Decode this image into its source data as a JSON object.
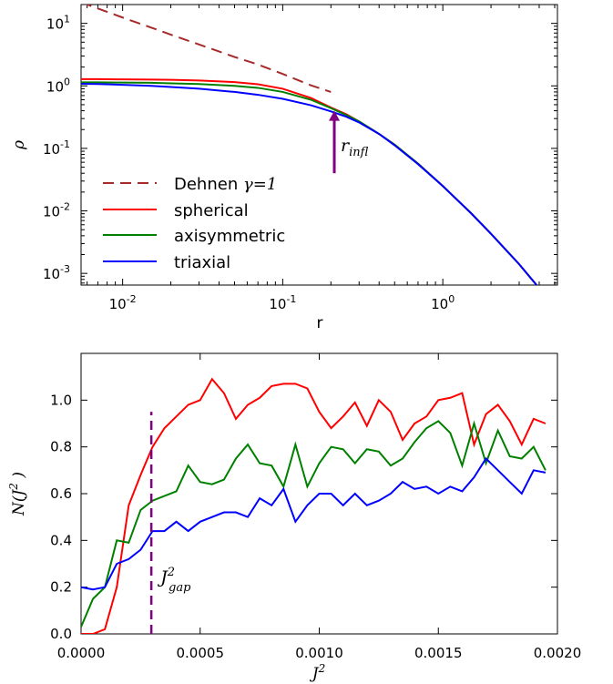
{
  "chart_data": [
    {
      "type": "line",
      "xscale": "log",
      "yscale": "log",
      "xlabel": "r",
      "ylabel": "ρ",
      "xlim": [
        0.0055,
        5.2
      ],
      "ylim": [
        0.00065,
        20
      ],
      "xticks": [
        {
          "value": 0.01,
          "mantissa": "10",
          "exp": "-2"
        },
        {
          "value": 0.1,
          "mantissa": "10",
          "exp": "-1"
        },
        {
          "value": 1,
          "mantissa": "10",
          "exp": "0"
        }
      ],
      "yticks": [
        {
          "value": 0.001,
          "mantissa": "10",
          "exp": "-3"
        },
        {
          "value": 0.01,
          "mantissa": "10",
          "exp": "-2"
        },
        {
          "value": 0.1,
          "mantissa": "10",
          "exp": "-1"
        },
        {
          "value": 1,
          "mantissa": "10",
          "exp": "0"
        },
        {
          "value": 10,
          "mantissa": "10",
          "exp": "1"
        }
      ],
      "legend_position": "lower-left",
      "series": [
        {
          "name_text": "Dehnen ",
          "name_math": "γ=1",
          "color": "#a52a2a",
          "dashed": true,
          "x": [
            0.0055,
            0.007,
            0.01,
            0.015,
            0.02,
            0.03,
            0.05,
            0.07,
            0.1,
            0.15,
            0.2
          ],
          "y": [
            21.8,
            17.3,
            12.4,
            8.6,
            6.6,
            4.6,
            2.9,
            2.2,
            1.55,
            1.02,
            0.8
          ]
        },
        {
          "name": "spherical",
          "color": "#ff0000",
          "dashed": false,
          "x": [
            0.0055,
            0.007,
            0.01,
            0.015,
            0.02,
            0.03,
            0.05,
            0.07,
            0.1,
            0.15,
            0.2,
            0.25,
            0.3,
            0.4,
            0.5,
            0.7,
            1.0,
            1.5,
            2.0,
            3.0,
            4.0,
            5.0
          ],
          "y": [
            1.28,
            1.28,
            1.27,
            1.26,
            1.25,
            1.22,
            1.15,
            1.06,
            0.9,
            0.64,
            0.45,
            0.35,
            0.27,
            0.17,
            0.115,
            0.057,
            0.025,
            0.0092,
            0.0043,
            0.0014,
            0.00058,
            0.00028
          ]
        },
        {
          "name": "axisymmetric",
          "color": "#008000",
          "dashed": false,
          "x": [
            0.0055,
            0.007,
            0.01,
            0.015,
            0.02,
            0.03,
            0.05,
            0.07,
            0.1,
            0.15,
            0.2,
            0.25,
            0.3,
            0.4,
            0.5,
            0.7,
            1.0,
            1.5,
            2.0,
            3.0,
            4.0,
            5.0
          ],
          "y": [
            1.14,
            1.14,
            1.13,
            1.12,
            1.1,
            1.07,
            1.0,
            0.93,
            0.8,
            0.6,
            0.44,
            0.34,
            0.27,
            0.17,
            0.115,
            0.057,
            0.025,
            0.0092,
            0.0043,
            0.0014,
            0.00058,
            0.00028
          ]
        },
        {
          "name": "triaxial",
          "color": "#0000ff",
          "dashed": false,
          "x": [
            0.0055,
            0.007,
            0.01,
            0.015,
            0.02,
            0.03,
            0.05,
            0.07,
            0.1,
            0.15,
            0.2,
            0.25,
            0.3,
            0.4,
            0.5,
            0.7,
            1.0,
            1.5,
            2.0,
            3.0,
            4.0,
            5.0
          ],
          "y": [
            1.08,
            1.07,
            1.04,
            1.0,
            0.96,
            0.9,
            0.8,
            0.72,
            0.62,
            0.49,
            0.39,
            0.32,
            0.26,
            0.17,
            0.112,
            0.056,
            0.025,
            0.0092,
            0.0043,
            0.0014,
            0.00058,
            0.00028
          ]
        }
      ],
      "annotation": {
        "label": "r",
        "subscript": "infl",
        "x": 0.21,
        "y_tail": 0.04,
        "y_head": 0.4,
        "color": "#800080"
      }
    },
    {
      "type": "line",
      "xlabel": "J",
      "xlabel_sup": "2",
      "ylabel": "N(J",
      "ylabel_sup": "2",
      "ylabel_end": " )",
      "xlim": [
        0,
        0.002
      ],
      "ylim": [
        0,
        1.2
      ],
      "xticks": [
        "0.0000",
        "0.0005",
        "0.0010",
        "0.0015",
        "0.0020"
      ],
      "xtick_values": [
        0,
        0.0005,
        0.001,
        0.0015,
        0.002
      ],
      "yticks": [
        "0.0",
        "0.2",
        "0.4",
        "0.6",
        "0.8",
        "1.0"
      ],
      "ytick_values": [
        0,
        0.2,
        0.4,
        0.6,
        0.8,
        1.0
      ],
      "series": [
        {
          "name": "spherical",
          "color": "#ff0000",
          "x": [
            0,
            5e-05,
            0.0001,
            0.00015,
            0.0002,
            0.00025,
            0.0003,
            0.00035,
            0.0004,
            0.00045,
            0.0005,
            0.00055,
            0.0006,
            0.00065,
            0.0007,
            0.00075,
            0.0008,
            0.00085,
            0.0009,
            0.00095,
            0.001,
            0.00105,
            0.0011,
            0.00115,
            0.0012,
            0.00125,
            0.0013,
            0.00135,
            0.0014,
            0.00145,
            0.0015,
            0.00155,
            0.0016,
            0.00165,
            0.0017,
            0.00175,
            0.0018,
            0.00185,
            0.0019,
            0.00195
          ],
          "y": [
            0.0,
            0.0,
            0.02,
            0.2,
            0.55,
            0.68,
            0.8,
            0.88,
            0.93,
            0.98,
            1.0,
            1.09,
            1.03,
            0.92,
            0.98,
            1.01,
            1.06,
            1.07,
            1.07,
            1.05,
            0.95,
            0.88,
            0.93,
            0.99,
            0.89,
            1.0,
            0.95,
            0.83,
            0.9,
            0.93,
            1.0,
            1.01,
            1.03,
            0.81,
            0.94,
            0.98,
            0.91,
            0.81,
            0.92,
            0.9
          ]
        },
        {
          "name": "axisymmetric",
          "color": "#008000",
          "x": [
            0,
            5e-05,
            0.0001,
            0.00015,
            0.0002,
            0.00025,
            0.0003,
            0.00035,
            0.0004,
            0.00045,
            0.0005,
            0.00055,
            0.0006,
            0.00065,
            0.0007,
            0.00075,
            0.0008,
            0.00085,
            0.0009,
            0.00095,
            0.001,
            0.00105,
            0.0011,
            0.00115,
            0.0012,
            0.00125,
            0.0013,
            0.00135,
            0.0014,
            0.00145,
            0.0015,
            0.00155,
            0.0016,
            0.00165,
            0.0017,
            0.00175,
            0.0018,
            0.00185,
            0.0019,
            0.00195
          ],
          "y": [
            0.03,
            0.15,
            0.2,
            0.4,
            0.39,
            0.53,
            0.57,
            0.59,
            0.61,
            0.72,
            0.65,
            0.64,
            0.66,
            0.75,
            0.81,
            0.73,
            0.72,
            0.63,
            0.81,
            0.63,
            0.73,
            0.8,
            0.79,
            0.73,
            0.79,
            0.78,
            0.72,
            0.75,
            0.82,
            0.88,
            0.91,
            0.86,
            0.72,
            0.9,
            0.73,
            0.87,
            0.76,
            0.75,
            0.8,
            0.7
          ]
        },
        {
          "name": "triaxial",
          "color": "#0000ff",
          "x": [
            0,
            5e-05,
            0.0001,
            0.00015,
            0.0002,
            0.00025,
            0.0003,
            0.00035,
            0.0004,
            0.00045,
            0.0005,
            0.00055,
            0.0006,
            0.00065,
            0.0007,
            0.00075,
            0.0008,
            0.00085,
            0.0009,
            0.00095,
            0.001,
            0.00105,
            0.0011,
            0.00115,
            0.0012,
            0.00125,
            0.0013,
            0.00135,
            0.0014,
            0.00145,
            0.0015,
            0.00155,
            0.0016,
            0.00165,
            0.0017,
            0.00175,
            0.0018,
            0.00185,
            0.0019,
            0.00195
          ],
          "y": [
            0.2,
            0.19,
            0.2,
            0.3,
            0.32,
            0.36,
            0.44,
            0.44,
            0.48,
            0.44,
            0.48,
            0.5,
            0.52,
            0.52,
            0.5,
            0.58,
            0.55,
            0.62,
            0.48,
            0.55,
            0.6,
            0.6,
            0.55,
            0.6,
            0.55,
            0.57,
            0.6,
            0.65,
            0.62,
            0.63,
            0.6,
            0.63,
            0.61,
            0.67,
            0.75,
            0.7,
            0.65,
            0.6,
            0.7,
            0.69
          ]
        }
      ],
      "annotation": {
        "label": "J",
        "sup": "2",
        "subscript": "gap",
        "x": 0.000295,
        "y_bottom": 0.0,
        "y_top": 0.95,
        "color": "#800080"
      }
    }
  ]
}
